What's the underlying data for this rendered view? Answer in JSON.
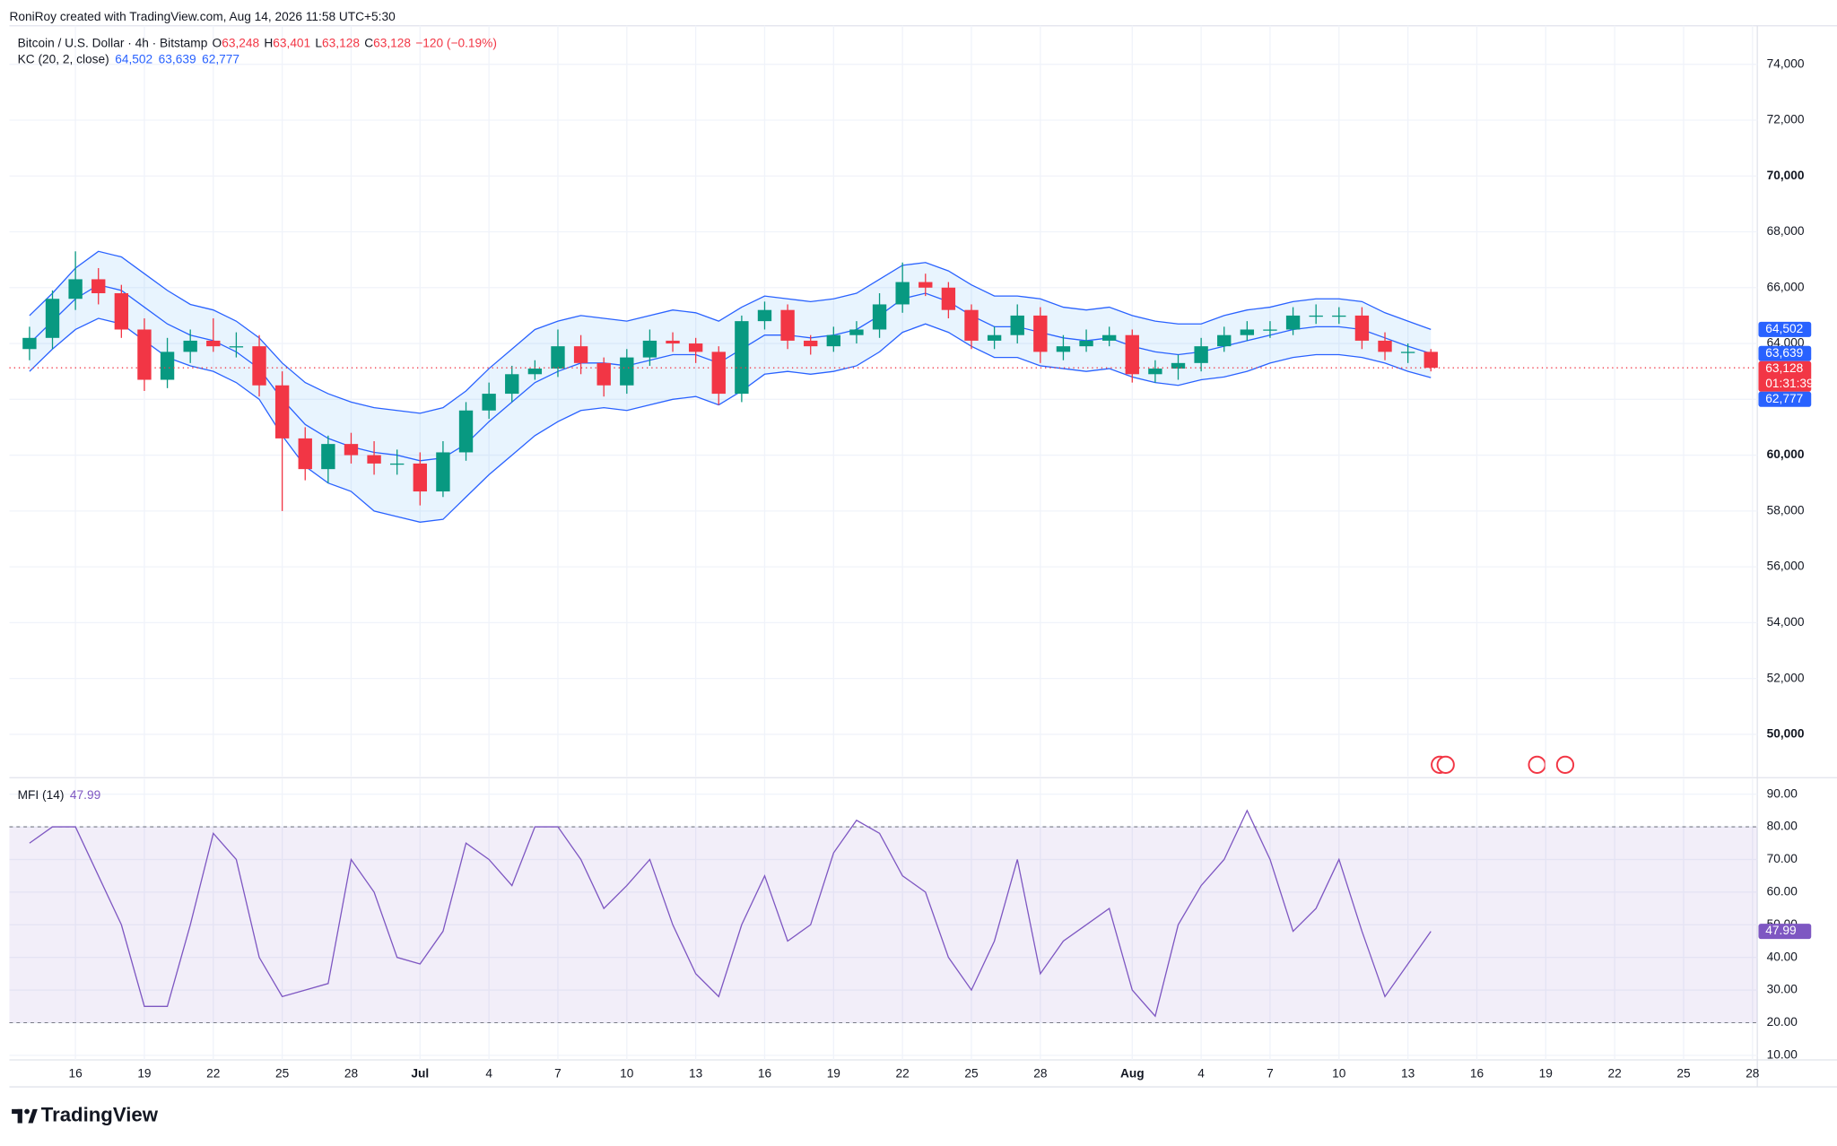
{
  "header": {
    "credit": "RoniRoy created with TradingView.com, Aug 14, 2026 11:58 UTC+5:30"
  },
  "footer": {
    "logo": "TradingView"
  },
  "chart_data": [
    {
      "type": "candlestick",
      "title": "Bitcoin / U.S. Dollar · 4h · Bitstamp",
      "ohlc": [
        {
          "name": "O",
          "label": "63,248"
        },
        {
          "name": "H",
          "label": "63,401"
        },
        {
          "name": "L",
          "label": "63,128"
        },
        {
          "name": "C",
          "label": "63,128"
        }
      ],
      "change": "−120 (−0.19%)",
      "up_color": "#089981",
      "down_color": "#f23645",
      "x": [
        "2026-06-14",
        "2026-06-15",
        "2026-06-16",
        "2026-06-17",
        "2026-06-18",
        "2026-06-19",
        "2026-06-20",
        "2026-06-21",
        "2026-06-22",
        "2026-06-23",
        "2026-06-24",
        "2026-06-25",
        "2026-06-26",
        "2026-06-27",
        "2026-06-28",
        "2026-06-29",
        "2026-06-30",
        "2026-07-01",
        "2026-07-02",
        "2026-07-03",
        "2026-07-04",
        "2026-07-05",
        "2026-07-06",
        "2026-07-07",
        "2026-07-08",
        "2026-07-09",
        "2026-07-10",
        "2026-07-11",
        "2026-07-12",
        "2026-07-13",
        "2026-07-14",
        "2026-07-15",
        "2026-07-16",
        "2026-07-17",
        "2026-07-18",
        "2026-07-19",
        "2026-07-20",
        "2026-07-21",
        "2026-07-22",
        "2026-07-23",
        "2026-07-24",
        "2026-07-25",
        "2026-07-26",
        "2026-07-27",
        "2026-07-28",
        "2026-07-29",
        "2026-07-30",
        "2026-07-31",
        "2026-08-01",
        "2026-08-02",
        "2026-08-03",
        "2026-08-04",
        "2026-08-05",
        "2026-08-06",
        "2026-08-07",
        "2026-08-08",
        "2026-08-09",
        "2026-08-10",
        "2026-08-11",
        "2026-08-12",
        "2026-08-13",
        "2026-08-14"
      ],
      "open": [
        63800,
        64200,
        65600,
        66300,
        65800,
        64500,
        62700,
        63700,
        64100,
        63900,
        63900,
        62500,
        60600,
        59500,
        60400,
        60000,
        59700,
        59700,
        58700,
        60100,
        61600,
        62200,
        62900,
        63100,
        63900,
        63300,
        62500,
        63500,
        64100,
        64000,
        63700,
        62200,
        64800,
        65200,
        64100,
        63900,
        64300,
        64500,
        65400,
        66200,
        66000,
        65200,
        64100,
        64300,
        65000,
        63700,
        63900,
        64100,
        64300,
        62900,
        63100,
        63300,
        63900,
        64300,
        64500,
        64500,
        65000,
        65000,
        65000,
        64100,
        63700,
        63700
      ],
      "high": [
        64600,
        65900,
        67300,
        66700,
        66100,
        64900,
        64200,
        64500,
        64900,
        64400,
        64300,
        63000,
        61000,
        60700,
        60800,
        60500,
        60200,
        60100,
        60500,
        61900,
        62600,
        63200,
        63400,
        64500,
        64300,
        63500,
        63800,
        64500,
        64400,
        64200,
        63900,
        65000,
        65500,
        65400,
        64300,
        64600,
        64800,
        65800,
        66900,
        66500,
        66200,
        65400,
        64600,
        65400,
        65300,
        64300,
        64500,
        64600,
        64500,
        63400,
        63600,
        64200,
        64600,
        64800,
        64800,
        65300,
        65400,
        65300,
        65300,
        64400,
        64000,
        63800
      ],
      "low": [
        63400,
        63800,
        65200,
        65400,
        64200,
        62300,
        62400,
        63300,
        63700,
        63500,
        62100,
        58000,
        59100,
        59000,
        59700,
        59300,
        59300,
        58200,
        58500,
        59800,
        61300,
        61900,
        62700,
        62800,
        62900,
        62100,
        62200,
        63200,
        63700,
        63300,
        61800,
        61900,
        64500,
        63800,
        63600,
        63700,
        64000,
        64200,
        65100,
        65700,
        64900,
        63800,
        63800,
        64000,
        63300,
        63400,
        63700,
        63900,
        62600,
        62600,
        62700,
        63000,
        63700,
        64100,
        64200,
        64300,
        64700,
        64700,
        63800,
        63400,
        63300,
        63000
      ],
      "close": [
        64200,
        65600,
        66300,
        65800,
        64500,
        62700,
        63700,
        64100,
        63900,
        63900,
        62500,
        60600,
        59500,
        60400,
        60000,
        59700,
        59700,
        58700,
        60100,
        61600,
        62200,
        62900,
        63100,
        63900,
        63300,
        62500,
        63500,
        64100,
        64000,
        63700,
        62200,
        64800,
        65200,
        64100,
        63900,
        64300,
        64500,
        65400,
        66200,
        66000,
        65200,
        64100,
        64300,
        65000,
        63700,
        63900,
        64100,
        64300,
        62900,
        63100,
        63300,
        63900,
        64300,
        64500,
        64500,
        65000,
        65000,
        65000,
        64100,
        63700,
        63700,
        63128
      ],
      "last_price_label": "63,128",
      "countdown": "01:31:39",
      "kc": {
        "name": "KC (20, 2, close)",
        "color": "#2962ff",
        "fill": "#2196f3",
        "upper": [
          65000,
          65800,
          66700,
          67300,
          67100,
          66500,
          65900,
          65400,
          65200,
          64800,
          64200,
          63300,
          62600,
          62200,
          61900,
          61700,
          61600,
          61500,
          61700,
          62300,
          63100,
          63800,
          64500,
          64800,
          65000,
          64900,
          64800,
          65000,
          65200,
          65100,
          64800,
          65300,
          65700,
          65600,
          65500,
          65600,
          65800,
          66300,
          66800,
          66900,
          66600,
          66100,
          65700,
          65700,
          65600,
          65300,
          65200,
          65300,
          65000,
          64800,
          64700,
          64700,
          65000,
          65200,
          65300,
          65500,
          65600,
          65600,
          65500,
          65100,
          64800,
          64502
        ],
        "middle": [
          64000,
          64800,
          65600,
          66100,
          65900,
          65300,
          64700,
          64300,
          64100,
          63700,
          63100,
          62000,
          61100,
          60600,
          60300,
          60100,
          60000,
          59800,
          59900,
          60400,
          61200,
          61900,
          62600,
          63000,
          63300,
          63300,
          63200,
          63400,
          63600,
          63600,
          63300,
          63800,
          64300,
          64300,
          64200,
          64300,
          64500,
          65000,
          65600,
          65800,
          65500,
          65000,
          64600,
          64600,
          64400,
          64200,
          64100,
          64200,
          63900,
          63700,
          63600,
          63700,
          63900,
          64100,
          64300,
          64500,
          64600,
          64600,
          64500,
          64200,
          63900,
          63639
        ],
        "lower": [
          63000,
          63800,
          64500,
          64900,
          64700,
          64100,
          63500,
          63200,
          63000,
          62600,
          62000,
          60700,
          59600,
          59000,
          58700,
          58000,
          57800,
          57600,
          57700,
          58500,
          59300,
          60000,
          60700,
          61200,
          61600,
          61700,
          61600,
          61800,
          62000,
          62100,
          61800,
          62300,
          62900,
          63000,
          62900,
          63000,
          63200,
          63700,
          64400,
          64700,
          64400,
          63900,
          63500,
          63500,
          63200,
          63100,
          63000,
          63100,
          62800,
          62600,
          62500,
          62700,
          62800,
          63000,
          63300,
          63500,
          63600,
          63600,
          63500,
          63300,
          63000,
          62777
        ],
        "last_labels": [
          "64,502",
          "63,639",
          "62,777"
        ]
      },
      "xlim": [
        "2026-06-13T03:00",
        "2026-08-28T05:00"
      ],
      "ylim": [
        48490,
        75380
      ],
      "yticks": [
        {
          "value": 50000,
          "label": "50,000"
        },
        {
          "value": 52000,
          "label": "52,000"
        },
        {
          "value": 54000,
          "label": "54,000"
        },
        {
          "value": 56000,
          "label": "56,000"
        },
        {
          "value": 58000,
          "label": "58,000"
        },
        {
          "value": 60000,
          "label": "60,000"
        },
        {
          "value": 62000,
          "label": "62,000"
        },
        {
          "value": 64000,
          "label": "64,000"
        },
        {
          "value": 66000,
          "label": "66,000"
        },
        {
          "value": 68000,
          "label": "68,000"
        },
        {
          "value": 70000,
          "label": "70,000"
        },
        {
          "value": 72000,
          "label": "72,000"
        },
        {
          "value": 74000,
          "label": "74,000"
        }
      ],
      "grid": true
    },
    {
      "type": "line",
      "title": "MFI (14)",
      "color": "#7e57c2",
      "values": [
        75,
        80,
        80,
        65,
        50,
        25,
        25,
        50,
        78,
        70,
        40,
        28,
        30,
        32,
        70,
        60,
        40,
        38,
        48,
        75,
        70,
        62,
        80,
        80,
        70,
        55,
        62,
        70,
        50,
        35,
        28,
        50,
        65,
        45,
        50,
        72,
        82,
        78,
        65,
        60,
        40,
        30,
        45,
        70,
        35,
        45,
        50,
        55,
        30,
        22,
        50,
        62,
        70,
        85,
        70,
        48,
        55,
        70,
        48,
        28,
        38,
        47.99
      ],
      "overbought": 80,
      "oversold": 20,
      "xlim": [
        "2026-06-13T03:00",
        "2026-08-28T05:00"
      ],
      "xticks": [
        {
          "value": "2026-06-16",
          "label": "16"
        },
        {
          "value": "2026-06-19",
          "label": "19"
        },
        {
          "value": "2026-06-22",
          "label": "22"
        },
        {
          "value": "2026-06-25",
          "label": "25"
        },
        {
          "value": "2026-06-28",
          "label": "28"
        },
        {
          "value": "2026-07-01",
          "label": "Jul"
        },
        {
          "value": "2026-07-04",
          "label": "4"
        },
        {
          "value": "2026-07-07",
          "label": "7"
        },
        {
          "value": "2026-07-10",
          "label": "10"
        },
        {
          "value": "2026-07-13",
          "label": "13"
        },
        {
          "value": "2026-07-16",
          "label": "16"
        },
        {
          "value": "2026-07-19",
          "label": "19"
        },
        {
          "value": "2026-07-22",
          "label": "22"
        },
        {
          "value": "2026-07-25",
          "label": "25"
        },
        {
          "value": "2026-07-28",
          "label": "28"
        },
        {
          "value": "2026-08-01",
          "label": "Aug"
        },
        {
          "value": "2026-08-04",
          "label": "4"
        },
        {
          "value": "2026-08-07",
          "label": "7"
        },
        {
          "value": "2026-08-10",
          "label": "10"
        },
        {
          "value": "2026-08-13",
          "label": "13"
        },
        {
          "value": "2026-08-16",
          "label": "16"
        },
        {
          "value": "2026-08-19",
          "label": "19"
        },
        {
          "value": "2026-08-22",
          "label": "22"
        },
        {
          "value": "2026-08-25",
          "label": "25"
        },
        {
          "value": "2026-08-28",
          "label": "28"
        }
      ],
      "ylim": [
        8.6,
        94.7
      ],
      "yticks": [
        {
          "value": 10,
          "label": "10.00"
        },
        {
          "value": 20,
          "label": "20.00"
        },
        {
          "value": 30,
          "label": "30.00"
        },
        {
          "value": 40,
          "label": "40.00"
        },
        {
          "value": 50,
          "label": "50.00"
        },
        {
          "value": 60,
          "label": "60.00"
        },
        {
          "value": 70,
          "label": "70.00"
        },
        {
          "value": 80,
          "label": "80.00"
        },
        {
          "value": 90,
          "label": "90.00"
        }
      ],
      "grid": true
    }
  ]
}
